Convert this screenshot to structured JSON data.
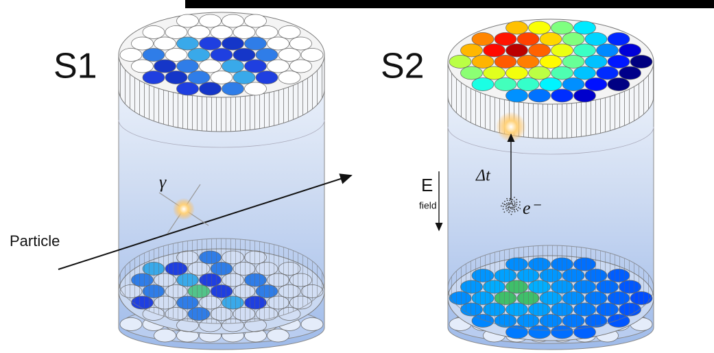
{
  "labels": {
    "s1": "S1",
    "s2": "S2",
    "particle": "Particle",
    "gamma": "γ",
    "delta_t": "Δt",
    "e_field": "E",
    "field_sub": "field",
    "electron": "e⁻"
  }
}
